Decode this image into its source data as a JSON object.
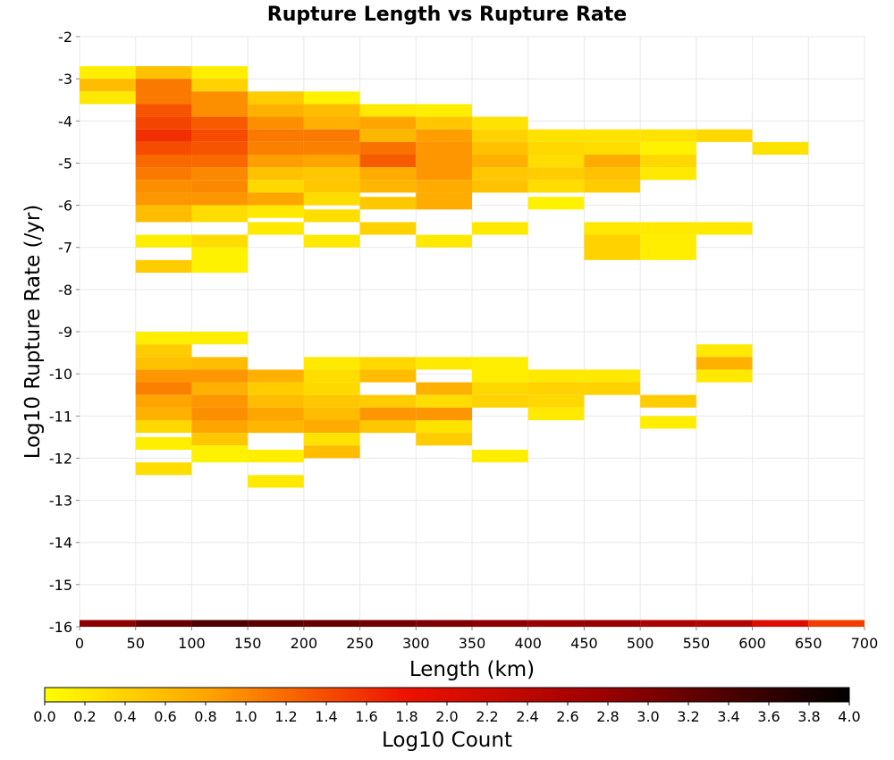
{
  "chart_data": {
    "type": "heatmap",
    "title": "Rupture Length vs Rupture Rate",
    "xlabel": "Length (km)",
    "ylabel": "Log10 Rupture Rate (/yr)",
    "xlim": [
      0,
      700
    ],
    "ylim": [
      -16,
      -2
    ],
    "x_bin_width": 50,
    "y_bin_height": 0.286,
    "x_ticks": [
      "0",
      "50",
      "100",
      "150",
      "200",
      "250",
      "300",
      "350",
      "400",
      "450",
      "500",
      "550",
      "600",
      "650",
      "700"
    ],
    "y_ticks": [
      "-2",
      "-3",
      "-4",
      "-5",
      "-6",
      "-7",
      "-8",
      "-9",
      "-10",
      "-11",
      "-12",
      "-13",
      "-14",
      "-15",
      "-16"
    ],
    "grid": true,
    "colorbar": {
      "label": "Log10 Count",
      "range": [
        0.0,
        4.0
      ],
      "ticks": [
        "0.0",
        "0.2",
        "0.4",
        "0.6",
        "0.8",
        "1.0",
        "1.2",
        "1.4",
        "1.6",
        "1.8",
        "2.0",
        "2.2",
        "2.4",
        "2.6",
        "2.8",
        "3.0",
        "3.2",
        "3.4",
        "3.6",
        "3.8",
        "4.0"
      ],
      "stops": [
        {
          "v": 0.0,
          "color": "#ffff00"
        },
        {
          "v": 0.8,
          "color": "#ffa500"
        },
        {
          "v": 1.8,
          "color": "#ee1100"
        },
        {
          "v": 2.8,
          "color": "#990000"
        },
        {
          "v": 4.0,
          "color": "#000000"
        }
      ]
    },
    "cells": [
      {
        "x0": 0,
        "ylo": -3.0,
        "yhi": -2.7,
        "v": 0.15
      },
      {
        "x0": 0,
        "ylo": -3.3,
        "yhi": -3.0,
        "v": 0.6
      },
      {
        "x0": 0,
        "ylo": -3.6,
        "yhi": -3.3,
        "v": 0.2
      },
      {
        "x0": 50,
        "ylo": -3.0,
        "yhi": -2.7,
        "v": 0.55
      },
      {
        "x0": 50,
        "ylo": -3.6,
        "yhi": -3.0,
        "v": 1.1
      },
      {
        "x0": 50,
        "ylo": -3.9,
        "yhi": -3.6,
        "v": 1.35
      },
      {
        "x0": 50,
        "ylo": -4.2,
        "yhi": -3.9,
        "v": 1.45
      },
      {
        "x0": 50,
        "ylo": -4.5,
        "yhi": -4.2,
        "v": 1.6
      },
      {
        "x0": 50,
        "ylo": -4.8,
        "yhi": -4.5,
        "v": 1.4
      },
      {
        "x0": 50,
        "ylo": -5.1,
        "yhi": -4.8,
        "v": 1.2
      },
      {
        "x0": 50,
        "ylo": -5.4,
        "yhi": -5.1,
        "v": 1.1
      },
      {
        "x0": 50,
        "ylo": -5.7,
        "yhi": -5.4,
        "v": 0.95
      },
      {
        "x0": 50,
        "ylo": -6.0,
        "yhi": -5.7,
        "v": 0.9
      },
      {
        "x0": 50,
        "ylo": -6.4,
        "yhi": -6.0,
        "v": 0.6
      },
      {
        "x0": 50,
        "ylo": -7.0,
        "yhi": -6.7,
        "v": 0.15
      },
      {
        "x0": 50,
        "ylo": -7.6,
        "yhi": -7.3,
        "v": 0.45
      },
      {
        "x0": 100,
        "ylo": -3.0,
        "yhi": -2.7,
        "v": 0.15
      },
      {
        "x0": 100,
        "ylo": -3.3,
        "yhi": -3.0,
        "v": 0.4
      },
      {
        "x0": 100,
        "ylo": -3.9,
        "yhi": -3.3,
        "v": 0.95
      },
      {
        "x0": 100,
        "ylo": -4.2,
        "yhi": -3.9,
        "v": 1.3
      },
      {
        "x0": 100,
        "ylo": -4.5,
        "yhi": -4.2,
        "v": 1.4
      },
      {
        "x0": 100,
        "ylo": -4.8,
        "yhi": -4.5,
        "v": 1.35
      },
      {
        "x0": 100,
        "ylo": -5.1,
        "yhi": -4.8,
        "v": 1.2
      },
      {
        "x0": 100,
        "ylo": -5.4,
        "yhi": -5.1,
        "v": 1.0
      },
      {
        "x0": 100,
        "ylo": -5.7,
        "yhi": -5.4,
        "v": 1.0
      },
      {
        "x0": 100,
        "ylo": -6.0,
        "yhi": -5.7,
        "v": 0.9
      },
      {
        "x0": 100,
        "ylo": -6.4,
        "yhi": -6.0,
        "v": 0.3
      },
      {
        "x0": 100,
        "ylo": -7.0,
        "yhi": -6.7,
        "v": 0.3
      },
      {
        "x0": 100,
        "ylo": -7.6,
        "yhi": -7.0,
        "v": 0.12
      },
      {
        "x0": 150,
        "ylo": -3.6,
        "yhi": -3.3,
        "v": 0.45
      },
      {
        "x0": 150,
        "ylo": -3.9,
        "yhi": -3.6,
        "v": 0.7
      },
      {
        "x0": 150,
        "ylo": -4.2,
        "yhi": -3.9,
        "v": 0.95
      },
      {
        "x0": 150,
        "ylo": -4.5,
        "yhi": -4.2,
        "v": 1.1
      },
      {
        "x0": 150,
        "ylo": -4.8,
        "yhi": -4.5,
        "v": 1.05
      },
      {
        "x0": 150,
        "ylo": -5.1,
        "yhi": -4.8,
        "v": 0.85
      },
      {
        "x0": 150,
        "ylo": -5.4,
        "yhi": -5.1,
        "v": 0.55
      },
      {
        "x0": 150,
        "ylo": -5.7,
        "yhi": -5.4,
        "v": 0.35
      },
      {
        "x0": 150,
        "ylo": -6.0,
        "yhi": -5.7,
        "v": 0.8
      },
      {
        "x0": 150,
        "ylo": -6.3,
        "yhi": -6.0,
        "v": 0.2
      },
      {
        "x0": 150,
        "ylo": -6.7,
        "yhi": -6.4,
        "v": 0.2
      },
      {
        "x0": 200,
        "ylo": -3.6,
        "yhi": -3.3,
        "v": 0.12
      },
      {
        "x0": 200,
        "ylo": -3.9,
        "yhi": -3.6,
        "v": 0.6
      },
      {
        "x0": 200,
        "ylo": -4.2,
        "yhi": -3.9,
        "v": 0.7
      },
      {
        "x0": 200,
        "ylo": -4.5,
        "yhi": -4.2,
        "v": 1.1
      },
      {
        "x0": 200,
        "ylo": -4.8,
        "yhi": -4.5,
        "v": 1.05
      },
      {
        "x0": 200,
        "ylo": -5.1,
        "yhi": -4.8,
        "v": 0.8
      },
      {
        "x0": 200,
        "ylo": -5.4,
        "yhi": -5.1,
        "v": 0.5
      },
      {
        "x0": 200,
        "ylo": -5.7,
        "yhi": -5.4,
        "v": 0.5
      },
      {
        "x0": 200,
        "ylo": -6.0,
        "yhi": -5.7,
        "v": 0.3
      },
      {
        "x0": 200,
        "ylo": -6.4,
        "yhi": -6.1,
        "v": 0.3
      },
      {
        "x0": 200,
        "ylo": -7.0,
        "yhi": -6.7,
        "v": 0.2
      },
      {
        "x0": 250,
        "ylo": -3.9,
        "yhi": -3.6,
        "v": 0.2
      },
      {
        "x0": 250,
        "ylo": -4.2,
        "yhi": -3.9,
        "v": 0.8
      },
      {
        "x0": 250,
        "ylo": -4.5,
        "yhi": -4.2,
        "v": 0.65
      },
      {
        "x0": 250,
        "ylo": -4.8,
        "yhi": -4.5,
        "v": 1.15
      },
      {
        "x0": 250,
        "ylo": -5.1,
        "yhi": -4.8,
        "v": 1.3
      },
      {
        "x0": 250,
        "ylo": -5.4,
        "yhi": -5.1,
        "v": 0.75
      },
      {
        "x0": 250,
        "ylo": -5.7,
        "yhi": -5.4,
        "v": 0.65
      },
      {
        "x0": 250,
        "ylo": -6.1,
        "yhi": -5.8,
        "v": 0.5
      },
      {
        "x0": 250,
        "ylo": -6.7,
        "yhi": -6.4,
        "v": 0.4
      },
      {
        "x0": 300,
        "ylo": -3.9,
        "yhi": -3.6,
        "v": 0.15
      },
      {
        "x0": 300,
        "ylo": -4.2,
        "yhi": -3.9,
        "v": 0.5
      },
      {
        "x0": 300,
        "ylo": -4.5,
        "yhi": -4.2,
        "v": 0.85
      },
      {
        "x0": 300,
        "ylo": -5.4,
        "yhi": -4.5,
        "v": 0.9
      },
      {
        "x0": 300,
        "ylo": -5.7,
        "yhi": -5.4,
        "v": 0.75
      },
      {
        "x0": 300,
        "ylo": -6.1,
        "yhi": -5.7,
        "v": 0.75
      },
      {
        "x0": 300,
        "ylo": -7.0,
        "yhi": -6.7,
        "v": 0.2
      },
      {
        "x0": 350,
        "ylo": -4.2,
        "yhi": -3.9,
        "v": 0.25
      },
      {
        "x0": 350,
        "ylo": -4.5,
        "yhi": -4.2,
        "v": 0.4
      },
      {
        "x0": 350,
        "ylo": -4.8,
        "yhi": -4.5,
        "v": 0.55
      },
      {
        "x0": 350,
        "ylo": -5.1,
        "yhi": -4.8,
        "v": 0.7
      },
      {
        "x0": 350,
        "ylo": -5.4,
        "yhi": -5.1,
        "v": 0.5
      },
      {
        "x0": 350,
        "ylo": -5.7,
        "yhi": -5.4,
        "v": 0.55
      },
      {
        "x0": 350,
        "ylo": -6.7,
        "yhi": -6.4,
        "v": 0.2
      },
      {
        "x0": 400,
        "ylo": -4.5,
        "yhi": -4.2,
        "v": 0.25
      },
      {
        "x0": 400,
        "ylo": -4.8,
        "yhi": -4.5,
        "v": 0.35
      },
      {
        "x0": 400,
        "ylo": -5.1,
        "yhi": -4.8,
        "v": 0.3
      },
      {
        "x0": 400,
        "ylo": -5.4,
        "yhi": -5.1,
        "v": 0.45
      },
      {
        "x0": 400,
        "ylo": -5.7,
        "yhi": -5.4,
        "v": 0.3
      },
      {
        "x0": 400,
        "ylo": -6.1,
        "yhi": -5.8,
        "v": 0.12
      },
      {
        "x0": 450,
        "ylo": -4.5,
        "yhi": -4.2,
        "v": 0.25
      },
      {
        "x0": 450,
        "ylo": -4.8,
        "yhi": -4.5,
        "v": 0.3
      },
      {
        "x0": 450,
        "ylo": -5.1,
        "yhi": -4.8,
        "v": 0.75
      },
      {
        "x0": 450,
        "ylo": -5.4,
        "yhi": -5.1,
        "v": 0.55
      },
      {
        "x0": 450,
        "ylo": -5.7,
        "yhi": -5.4,
        "v": 0.45
      },
      {
        "x0": 450,
        "ylo": -7.0,
        "yhi": -6.7,
        "v": 0.3
      },
      {
        "x0": 450,
        "ylo": -7.3,
        "yhi": -6.7,
        "v": 0.4
      },
      {
        "x0": 450,
        "ylo": -6.7,
        "yhi": -6.4,
        "v": 0.2
      },
      {
        "x0": 500,
        "ylo": -4.5,
        "yhi": -4.2,
        "v": 0.25
      },
      {
        "x0": 500,
        "ylo": -4.8,
        "yhi": -4.5,
        "v": 0.12
      },
      {
        "x0": 500,
        "ylo": -5.1,
        "yhi": -4.8,
        "v": 0.35
      },
      {
        "x0": 500,
        "ylo": -5.4,
        "yhi": -5.1,
        "v": 0.2
      },
      {
        "x0": 500,
        "ylo": -6.7,
        "yhi": -6.4,
        "v": 0.2
      },
      {
        "x0": 500,
        "ylo": -7.3,
        "yhi": -6.7,
        "v": 0.15
      },
      {
        "x0": 550,
        "ylo": -4.5,
        "yhi": -4.2,
        "v": 0.35
      },
      {
        "x0": 550,
        "ylo": -6.7,
        "yhi": -6.4,
        "v": 0.2
      },
      {
        "x0": 600,
        "ylo": -4.8,
        "yhi": -4.5,
        "v": 0.25
      },
      {
        "x0": 50,
        "ylo": -9.3,
        "yhi": -9.0,
        "v": 0.15
      },
      {
        "x0": 50,
        "ylo": -9.6,
        "yhi": -9.3,
        "v": 0.45
      },
      {
        "x0": 50,
        "ylo": -9.9,
        "yhi": -9.6,
        "v": 0.55
      },
      {
        "x0": 50,
        "ylo": -10.2,
        "yhi": -9.9,
        "v": 0.9
      },
      {
        "x0": 50,
        "ylo": -10.5,
        "yhi": -10.2,
        "v": 1.05
      },
      {
        "x0": 50,
        "ylo": -10.8,
        "yhi": -10.5,
        "v": 0.8
      },
      {
        "x0": 50,
        "ylo": -11.1,
        "yhi": -10.8,
        "v": 0.7
      },
      {
        "x0": 50,
        "ylo": -11.4,
        "yhi": -11.1,
        "v": 0.35
      },
      {
        "x0": 50,
        "ylo": -11.8,
        "yhi": -11.5,
        "v": 0.15
      },
      {
        "x0": 50,
        "ylo": -12.4,
        "yhi": -12.1,
        "v": 0.3
      },
      {
        "x0": 100,
        "ylo": -9.3,
        "yhi": -9.0,
        "v": 0.15
      },
      {
        "x0": 100,
        "ylo": -9.9,
        "yhi": -9.6,
        "v": 0.6
      },
      {
        "x0": 100,
        "ylo": -10.2,
        "yhi": -9.9,
        "v": 0.9
      },
      {
        "x0": 100,
        "ylo": -10.5,
        "yhi": -10.2,
        "v": 0.7
      },
      {
        "x0": 100,
        "ylo": -10.8,
        "yhi": -10.5,
        "v": 0.9
      },
      {
        "x0": 100,
        "ylo": -11.1,
        "yhi": -10.8,
        "v": 0.95
      },
      {
        "x0": 100,
        "ylo": -11.4,
        "yhi": -11.1,
        "v": 0.8
      },
      {
        "x0": 100,
        "ylo": -11.7,
        "yhi": -11.4,
        "v": 0.5
      },
      {
        "x0": 100,
        "ylo": -12.1,
        "yhi": -11.7,
        "v": 0.12
      },
      {
        "x0": 150,
        "ylo": -10.2,
        "yhi": -9.9,
        "v": 0.7
      },
      {
        "x0": 150,
        "ylo": -10.5,
        "yhi": -10.2,
        "v": 0.45
      },
      {
        "x0": 150,
        "ylo": -10.8,
        "yhi": -10.5,
        "v": 0.6
      },
      {
        "x0": 150,
        "ylo": -11.1,
        "yhi": -10.8,
        "v": 0.8
      },
      {
        "x0": 150,
        "ylo": -11.4,
        "yhi": -11.1,
        "v": 0.65
      },
      {
        "x0": 150,
        "ylo": -12.1,
        "yhi": -11.8,
        "v": 0.15
      },
      {
        "x0": 150,
        "ylo": -12.7,
        "yhi": -12.4,
        "v": 0.2
      },
      {
        "x0": 200,
        "ylo": -9.9,
        "yhi": -9.6,
        "v": 0.2
      },
      {
        "x0": 200,
        "ylo": -10.2,
        "yhi": -9.9,
        "v": 0.3
      },
      {
        "x0": 200,
        "ylo": -10.5,
        "yhi": -10.2,
        "v": 0.35
      },
      {
        "x0": 200,
        "ylo": -10.8,
        "yhi": -10.5,
        "v": 0.5
      },
      {
        "x0": 200,
        "ylo": -11.1,
        "yhi": -10.8,
        "v": 0.6
      },
      {
        "x0": 200,
        "ylo": -11.4,
        "yhi": -11.1,
        "v": 0.75
      },
      {
        "x0": 200,
        "ylo": -11.7,
        "yhi": -11.4,
        "v": 0.25
      },
      {
        "x0": 200,
        "ylo": -12.0,
        "yhi": -11.7,
        "v": 0.6
      },
      {
        "x0": 250,
        "ylo": -9.9,
        "yhi": -9.6,
        "v": 0.35
      },
      {
        "x0": 250,
        "ylo": -10.2,
        "yhi": -9.9,
        "v": 0.6
      },
      {
        "x0": 250,
        "ylo": -10.8,
        "yhi": -10.5,
        "v": 0.45
      },
      {
        "x0": 250,
        "ylo": -11.1,
        "yhi": -10.8,
        "v": 0.9
      },
      {
        "x0": 250,
        "ylo": -11.4,
        "yhi": -11.1,
        "v": 0.5
      },
      {
        "x0": 300,
        "ylo": -9.9,
        "yhi": -9.6,
        "v": 0.2
      },
      {
        "x0": 300,
        "ylo": -10.5,
        "yhi": -10.2,
        "v": 0.7
      },
      {
        "x0": 300,
        "ylo": -10.8,
        "yhi": -10.5,
        "v": 0.3
      },
      {
        "x0": 300,
        "ylo": -11.1,
        "yhi": -10.8,
        "v": 0.9
      },
      {
        "x0": 300,
        "ylo": -11.4,
        "yhi": -11.1,
        "v": 0.25
      },
      {
        "x0": 300,
        "ylo": -11.7,
        "yhi": -11.4,
        "v": 0.45
      },
      {
        "x0": 350,
        "ylo": -10.2,
        "yhi": -9.6,
        "v": 0.15
      },
      {
        "x0": 350,
        "ylo": -10.5,
        "yhi": -10.2,
        "v": 0.35
      },
      {
        "x0": 350,
        "ylo": -10.8,
        "yhi": -10.5,
        "v": 0.4
      },
      {
        "x0": 350,
        "ylo": -12.1,
        "yhi": -11.8,
        "v": 0.15
      },
      {
        "x0": 400,
        "ylo": -10.2,
        "yhi": -9.9,
        "v": 0.2
      },
      {
        "x0": 400,
        "ylo": -10.5,
        "yhi": -10.2,
        "v": 0.4
      },
      {
        "x0": 400,
        "ylo": -10.8,
        "yhi": -10.5,
        "v": 0.35
      },
      {
        "x0": 400,
        "ylo": -11.1,
        "yhi": -10.8,
        "v": 0.2
      },
      {
        "x0": 450,
        "ylo": -10.2,
        "yhi": -9.9,
        "v": 0.2
      },
      {
        "x0": 450,
        "ylo": -10.5,
        "yhi": -10.2,
        "v": 0.4
      },
      {
        "x0": 500,
        "ylo": -10.8,
        "yhi": -10.5,
        "v": 0.45
      },
      {
        "x0": 500,
        "ylo": -11.3,
        "yhi": -11.0,
        "v": 0.15
      },
      {
        "x0": 550,
        "ylo": -9.6,
        "yhi": -9.3,
        "v": 0.2
      },
      {
        "x0": 550,
        "ylo": -9.9,
        "yhi": -9.6,
        "v": 0.7
      },
      {
        "x0": 550,
        "ylo": -10.2,
        "yhi": -9.9,
        "v": 0.2
      },
      {
        "x0": 0,
        "ylo": -16.0,
        "yhi": -15.84,
        "v": 2.9
      },
      {
        "x0": 50,
        "ylo": -16.0,
        "yhi": -15.84,
        "v": 3.2
      },
      {
        "x0": 100,
        "ylo": -16.0,
        "yhi": -15.84,
        "v": 3.4
      },
      {
        "x0": 150,
        "ylo": -16.0,
        "yhi": -15.84,
        "v": 3.3
      },
      {
        "x0": 200,
        "ylo": -16.0,
        "yhi": -15.84,
        "v": 3.2
      },
      {
        "x0": 250,
        "ylo": -16.0,
        "yhi": -15.84,
        "v": 3.1
      },
      {
        "x0": 300,
        "ylo": -16.0,
        "yhi": -15.84,
        "v": 3.0
      },
      {
        "x0": 350,
        "ylo": -16.0,
        "yhi": -15.84,
        "v": 2.9
      },
      {
        "x0": 400,
        "ylo": -16.0,
        "yhi": -15.84,
        "v": 2.8
      },
      {
        "x0": 450,
        "ylo": -16.0,
        "yhi": -15.84,
        "v": 2.8
      },
      {
        "x0": 500,
        "ylo": -16.0,
        "yhi": -15.84,
        "v": 2.6
      },
      {
        "x0": 550,
        "ylo": -16.0,
        "yhi": -15.84,
        "v": 2.5
      },
      {
        "x0": 600,
        "ylo": -16.0,
        "yhi": -15.84,
        "v": 2.0
      },
      {
        "x0": 650,
        "ylo": -16.0,
        "yhi": -15.84,
        "v": 1.5
      }
    ]
  }
}
